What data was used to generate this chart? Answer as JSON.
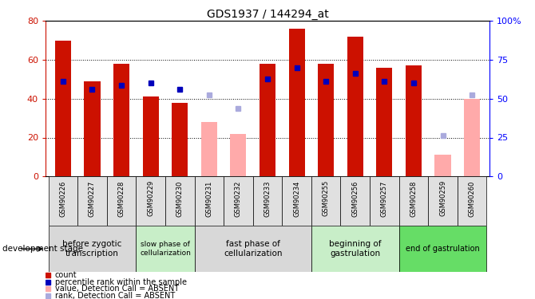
{
  "title": "GDS1937 / 144294_at",
  "samples": [
    "GSM90226",
    "GSM90227",
    "GSM90228",
    "GSM90229",
    "GSM90230",
    "GSM90231",
    "GSM90232",
    "GSM90233",
    "GSM90234",
    "GSM90255",
    "GSM90256",
    "GSM90257",
    "GSM90258",
    "GSM90259",
    "GSM90260"
  ],
  "red_bars": [
    70,
    49,
    58,
    41,
    38,
    null,
    null,
    58,
    76,
    58,
    72,
    56,
    57,
    null,
    null
  ],
  "pink_bars": [
    null,
    null,
    null,
    null,
    null,
    28,
    22,
    null,
    null,
    null,
    null,
    null,
    null,
    11,
    40
  ],
  "blue_squares": [
    49,
    45,
    47,
    48,
    45,
    null,
    null,
    50,
    56,
    49,
    53,
    49,
    48,
    null,
    null
  ],
  "lightblue_squares": [
    null,
    null,
    null,
    null,
    null,
    42,
    35,
    null,
    null,
    null,
    null,
    null,
    null,
    21,
    42
  ],
  "stage_groups": [
    {
      "label": "before zygotic\ntranscription",
      "start": 0,
      "end": 3,
      "color": "#d8d8d8",
      "fontsize": 7.5
    },
    {
      "label": "slow phase of\ncellularization",
      "start": 3,
      "end": 5,
      "color": "#c8eec8",
      "fontsize": 6.5
    },
    {
      "label": "fast phase of\ncellularization",
      "start": 5,
      "end": 9,
      "color": "#d8d8d8",
      "fontsize": 7.5
    },
    {
      "label": "beginning of\ngastrulation",
      "start": 9,
      "end": 12,
      "color": "#c8eec8",
      "fontsize": 7.5
    },
    {
      "label": "end of gastrulation",
      "start": 12,
      "end": 15,
      "color": "#66dd66",
      "fontsize": 7.0
    }
  ],
  "ylim_left": [
    0,
    80
  ],
  "ylim_right": [
    0,
    100
  ],
  "yticks_left": [
    0,
    20,
    40,
    60,
    80
  ],
  "yticks_right": [
    0,
    25,
    50,
    75,
    100
  ],
  "red_color": "#cc1100",
  "pink_color": "#ffaaaa",
  "blue_color": "#0000bb",
  "lightblue_color": "#aaaadd",
  "bar_width": 0.55,
  "square_size": 4,
  "grid_lines": [
    20,
    40,
    60
  ],
  "legend_items": [
    {
      "color": "#cc1100",
      "label": "count"
    },
    {
      "color": "#0000bb",
      "label": "percentile rank within the sample"
    },
    {
      "color": "#ffaaaa",
      "label": "value, Detection Call = ABSENT"
    },
    {
      "color": "#aaaadd",
      "label": "rank, Detection Call = ABSENT"
    }
  ]
}
